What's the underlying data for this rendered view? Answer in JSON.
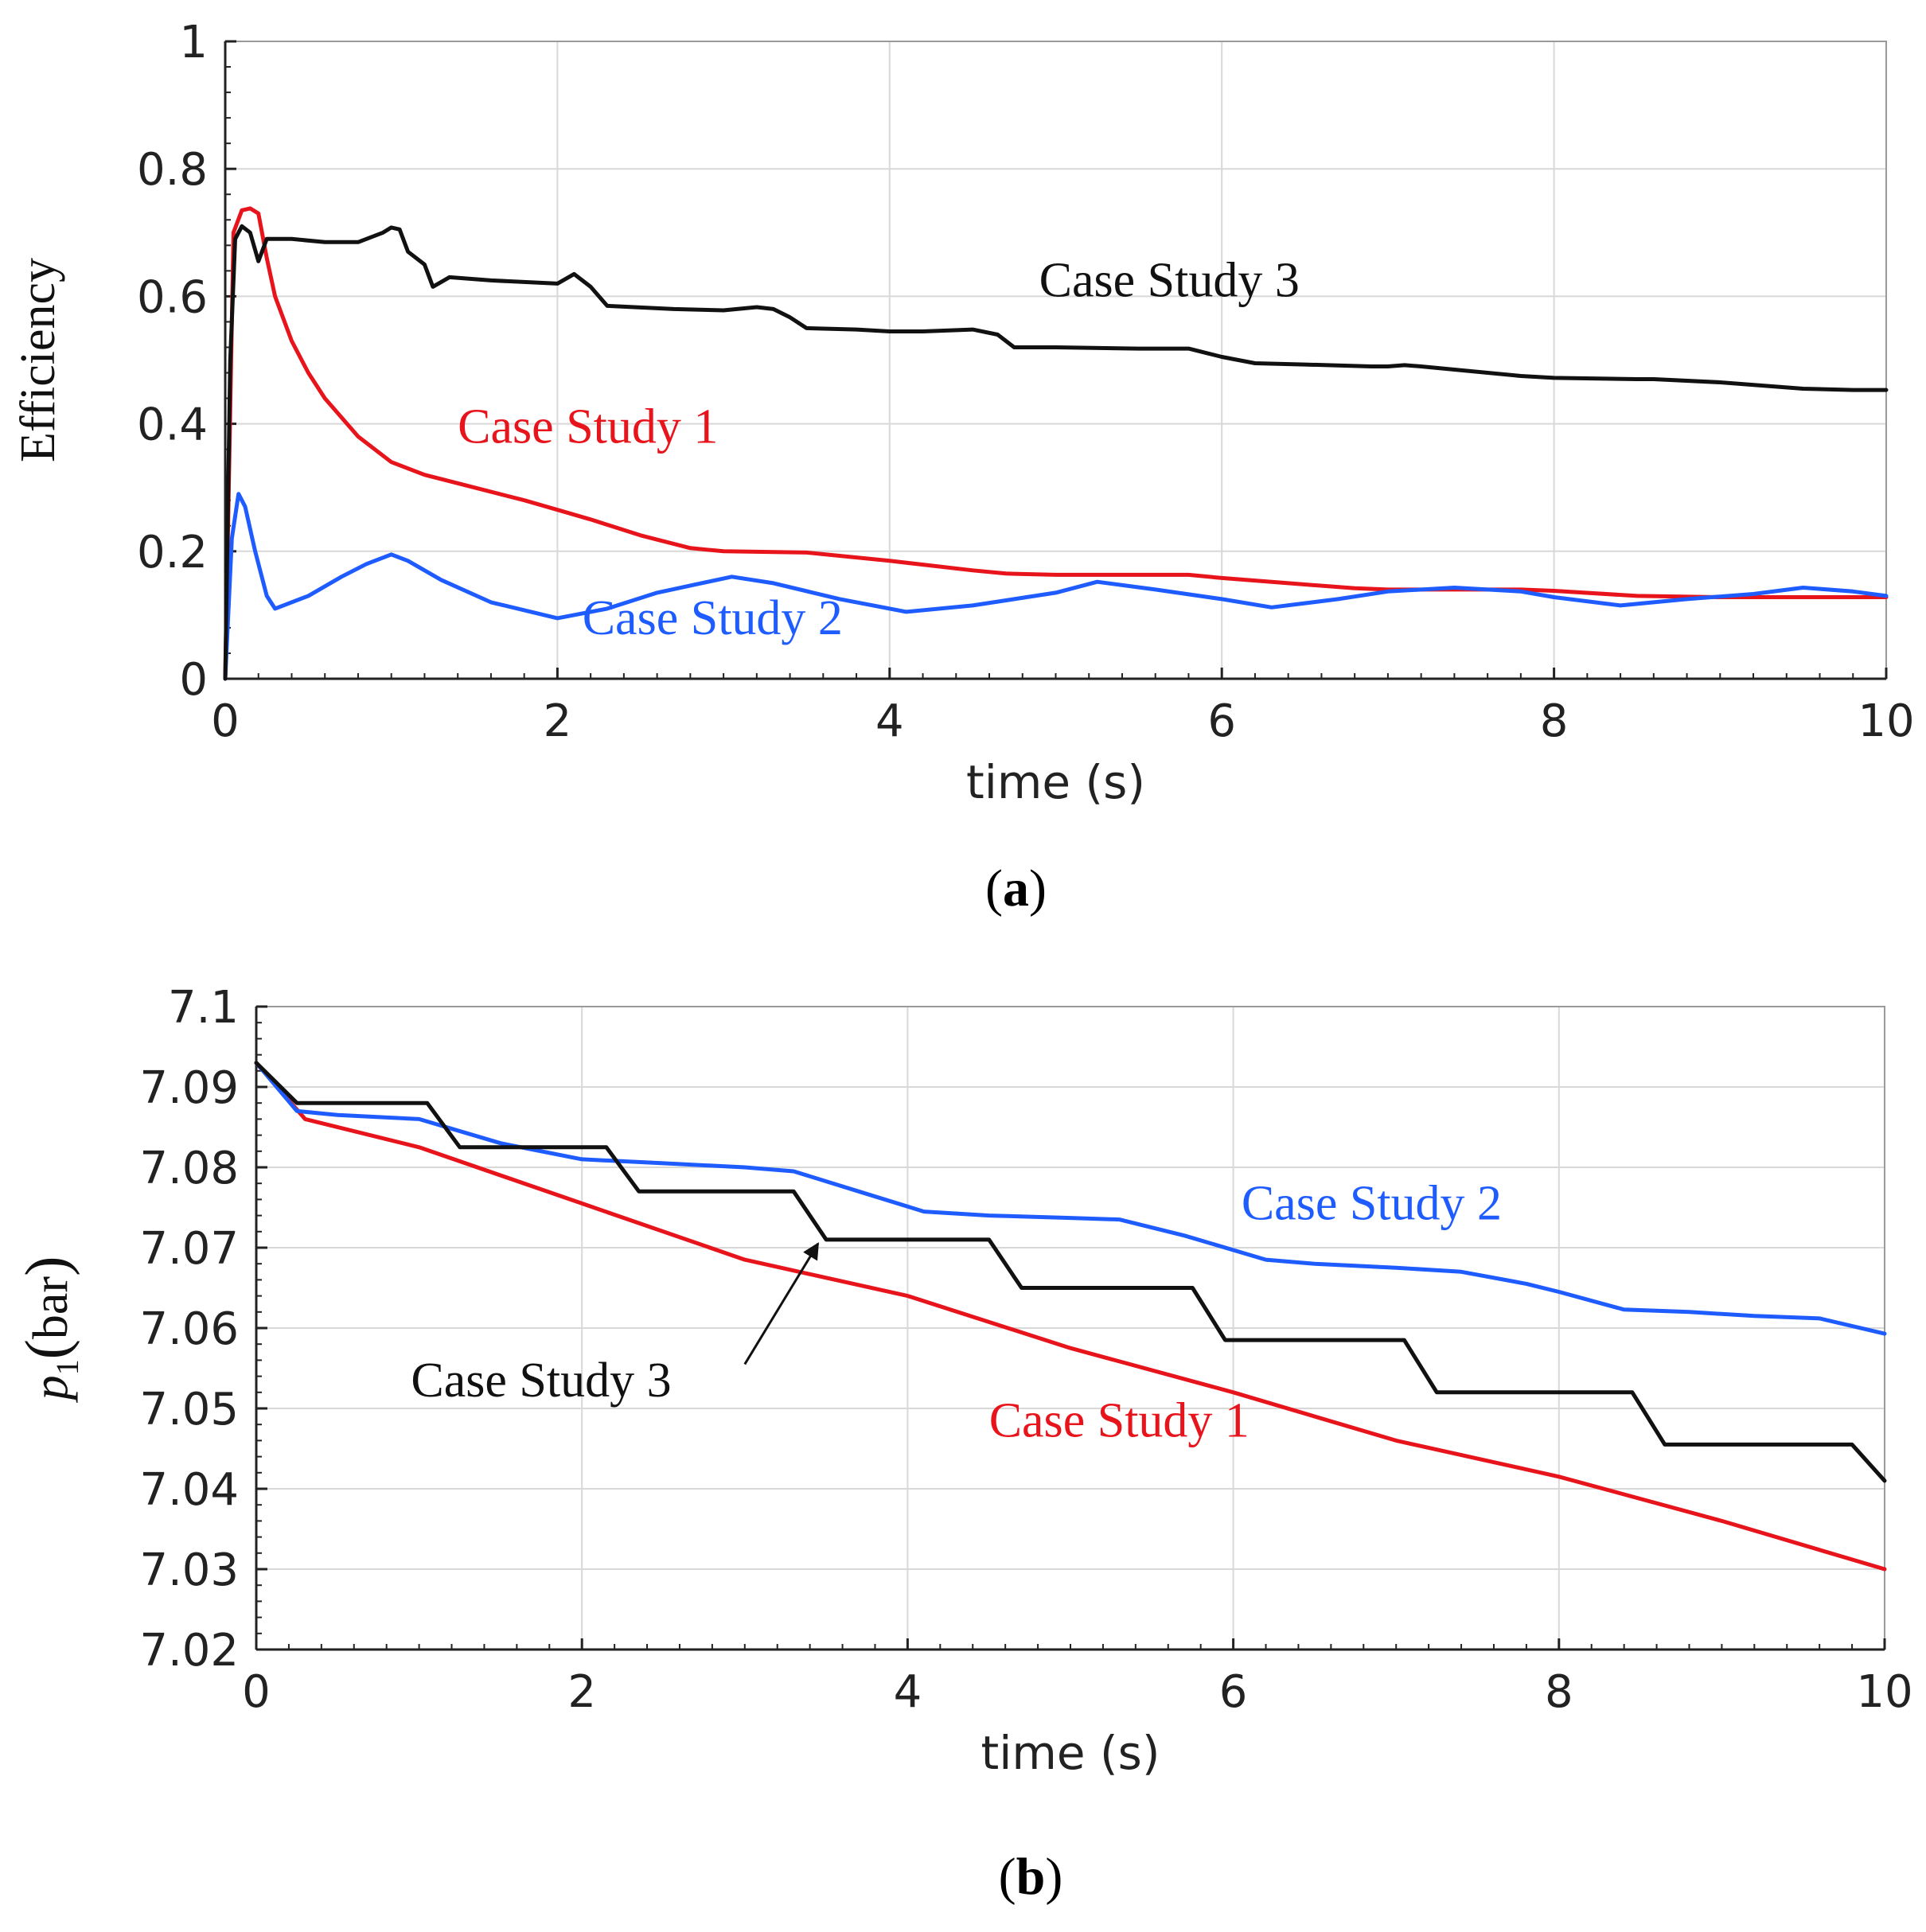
{
  "chart_data": [
    {
      "type": "line",
      "panel": "(a)",
      "panel_letter": "a",
      "xlabel": "time (s)",
      "ylabel": "Efficiency",
      "xlim": [
        0,
        10
      ],
      "ylim": [
        0,
        1
      ],
      "x_ticks": [
        "0",
        "2",
        "4",
        "6",
        "8",
        "10"
      ],
      "y_ticks": [
        "0",
        "0.2",
        "0.4",
        "0.6",
        "0.8",
        "1"
      ],
      "grid": true,
      "series": [
        {
          "name": "Case Study 1",
          "label": "Case Study 1",
          "color": "#e8141c",
          "label_pos": [
            1.4,
            0.37
          ],
          "x": [
            0,
            0.05,
            0.1,
            0.15,
            0.2,
            0.25,
            0.3,
            0.4,
            0.5,
            0.6,
            0.8,
            1.0,
            1.2,
            1.5,
            1.8,
            2.0,
            2.2,
            2.5,
            2.8,
            3.0,
            3.5,
            4.0,
            4.5,
            4.7,
            5.0,
            5.5,
            5.8,
            6.0,
            6.5,
            6.8,
            7.0,
            7.5,
            7.8,
            8.0,
            8.5,
            9.0,
            9.5,
            10.0
          ],
          "y": [
            0.0,
            0.7,
            0.735,
            0.738,
            0.73,
            0.66,
            0.6,
            0.53,
            0.48,
            0.44,
            0.38,
            0.34,
            0.32,
            0.3,
            0.28,
            0.265,
            0.25,
            0.225,
            0.205,
            0.2,
            0.198,
            0.185,
            0.17,
            0.165,
            0.163,
            0.163,
            0.163,
            0.158,
            0.148,
            0.142,
            0.14,
            0.14,
            0.14,
            0.138,
            0.13,
            0.128,
            0.128,
            0.128
          ]
        },
        {
          "name": "Case Study 2",
          "label": "Case Study 2",
          "color": "#1f5cff",
          "label_pos": [
            2.15,
            0.07
          ],
          "x": [
            0,
            0.04,
            0.08,
            0.12,
            0.18,
            0.25,
            0.3,
            0.5,
            0.7,
            0.85,
            1.0,
            1.1,
            1.3,
            1.6,
            2.0,
            2.3,
            2.6,
            3.05,
            3.3,
            3.7,
            4.1,
            4.5,
            5.0,
            5.25,
            5.6,
            6.0,
            6.3,
            6.7,
            7.0,
            7.4,
            7.8,
            8.0,
            8.4,
            8.8,
            9.2,
            9.5,
            9.8,
            10.0
          ],
          "y": [
            0.0,
            0.22,
            0.29,
            0.27,
            0.2,
            0.13,
            0.11,
            0.13,
            0.16,
            0.18,
            0.195,
            0.185,
            0.155,
            0.12,
            0.095,
            0.11,
            0.135,
            0.16,
            0.15,
            0.125,
            0.105,
            0.115,
            0.135,
            0.152,
            0.14,
            0.125,
            0.112,
            0.125,
            0.137,
            0.143,
            0.137,
            0.128,
            0.115,
            0.125,
            0.133,
            0.143,
            0.137,
            0.13
          ]
        },
        {
          "name": "Case Study 3",
          "label": "Case Study 3",
          "color": "#111111",
          "label_pos": [
            4.9,
            0.6
          ],
          "x": [
            0,
            0.03,
            0.06,
            0.1,
            0.15,
            0.2,
            0.25,
            0.3,
            0.4,
            0.6,
            0.8,
            0.95,
            1.0,
            1.05,
            1.1,
            1.2,
            1.25,
            1.35,
            1.6,
            2.0,
            2.1,
            2.2,
            2.3,
            2.7,
            3.0,
            3.2,
            3.3,
            3.4,
            3.5,
            3.8,
            4.0,
            4.2,
            4.5,
            4.65,
            4.75,
            5.0,
            5.5,
            5.8,
            6.0,
            6.2,
            6.5,
            6.9,
            7.0,
            7.1,
            7.2,
            7.8,
            8.0,
            8.5,
            8.6,
            9.0,
            9.5,
            9.8,
            10.0
          ],
          "y": [
            0.0,
            0.5,
            0.69,
            0.71,
            0.7,
            0.655,
            0.69,
            0.69,
            0.69,
            0.685,
            0.685,
            0.7,
            0.708,
            0.705,
            0.67,
            0.65,
            0.615,
            0.63,
            0.625,
            0.62,
            0.635,
            0.615,
            0.585,
            0.58,
            0.578,
            0.583,
            0.58,
            0.567,
            0.55,
            0.548,
            0.545,
            0.545,
            0.548,
            0.54,
            0.52,
            0.52,
            0.518,
            0.518,
            0.505,
            0.495,
            0.493,
            0.49,
            0.49,
            0.492,
            0.49,
            0.475,
            0.472,
            0.47,
            0.47,
            0.465,
            0.455,
            0.453,
            0.453
          ]
        }
      ]
    },
    {
      "type": "line",
      "panel": "(b)",
      "panel_letter": "b",
      "xlabel": "time (s)",
      "ylabel_var": "p",
      "ylabel_sub": "1",
      "ylabel_unit": "bar",
      "xlim": [
        0,
        10
      ],
      "ylim": [
        7.02,
        7.1
      ],
      "x_ticks": [
        "0",
        "2",
        "4",
        "6",
        "8",
        "10"
      ],
      "y_ticks": [
        "7.02",
        "7.03",
        "7.04",
        "7.05",
        "7.06",
        "7.07",
        "7.08",
        "7.09",
        "7.1"
      ],
      "grid": true,
      "series": [
        {
          "name": "Case Study 1",
          "label": "Case Study 1",
          "color": "#e8141c",
          "label_pos": [
            4.5,
            7.0465
          ],
          "x": [
            0,
            0.3,
            1.0,
            2.0,
            3.0,
            4.0,
            5.0,
            6.0,
            7.0,
            8.0,
            9.0,
            10.0
          ],
          "y": [
            7.093,
            7.086,
            7.0825,
            7.0755,
            7.0685,
            7.064,
            7.0575,
            7.052,
            7.046,
            7.0415,
            7.036,
            7.03
          ]
        },
        {
          "name": "Case Study 2",
          "label": "Case Study 2",
          "color": "#1f5cff",
          "label_pos": [
            6.05,
            7.0735
          ],
          "x": [
            0,
            0.25,
            0.5,
            1.0,
            1.5,
            2.0,
            2.5,
            3.0,
            3.3,
            3.7,
            4.1,
            4.5,
            5.0,
            5.3,
            5.7,
            6.2,
            6.5,
            7.0,
            7.4,
            7.8,
            8.0,
            8.4,
            8.8,
            9.2,
            9.6,
            10.0
          ],
          "y": [
            7.093,
            7.087,
            7.0865,
            7.086,
            7.083,
            7.081,
            7.0805,
            7.08,
            7.0795,
            7.077,
            7.0745,
            7.074,
            7.0737,
            7.0735,
            7.0715,
            7.0685,
            7.068,
            7.0675,
            7.067,
            7.0655,
            7.0645,
            7.0623,
            7.062,
            7.0615,
            7.0612,
            7.0593
          ]
        },
        {
          "name": "Case Study 3",
          "label": "Case Study 3",
          "color": "#111111",
          "label_pos": [
            0.95,
            7.0515
          ],
          "x": [
            0,
            0.25,
            1.05,
            1.25,
            2.15,
            2.35,
            3.3,
            3.5,
            4.5,
            4.7,
            5.75,
            5.95,
            7.05,
            7.25,
            8.45,
            8.65,
            9.8,
            10.0
          ],
          "y": [
            7.093,
            7.088,
            7.088,
            7.0825,
            7.0825,
            7.077,
            7.077,
            7.071,
            7.071,
            7.065,
            7.065,
            7.0585,
            7.0585,
            7.052,
            7.052,
            7.0455,
            7.0455,
            7.041
          ]
        }
      ],
      "annotation": {
        "text": "Case Study 3",
        "arrow_from": [
          3.0,
          7.0555
        ],
        "arrow_to": [
          3.45,
          7.0705
        ]
      }
    }
  ]
}
